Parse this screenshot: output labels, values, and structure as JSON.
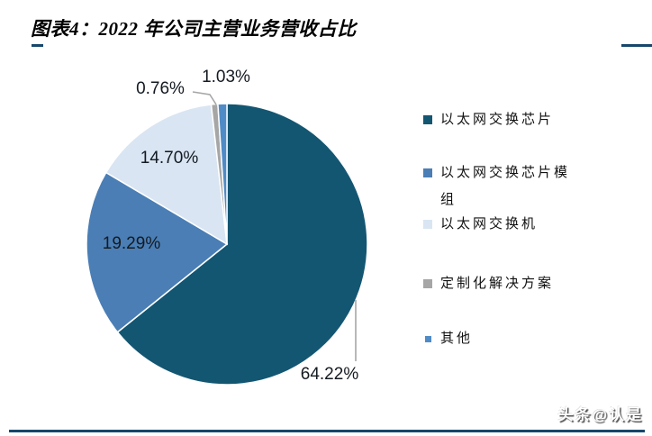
{
  "header": {
    "title": "图表4：2022 年公司主营业务营收占比"
  },
  "chart_data": {
    "type": "pie",
    "title": "2022 年公司主营业务营收占比",
    "start_angle_deg": 0,
    "direction": "clockwise",
    "legend_position": "right",
    "label_color": "#141a21",
    "leader_line_color": "#a6a6a6",
    "slices": [
      {
        "name": "以太网交换芯片",
        "value": 64.22,
        "label": "64.22%",
        "color": "#135672"
      },
      {
        "name": "以太网交换芯片模组",
        "value": 19.29,
        "label": "19.29%",
        "color": "#4a7eb5"
      },
      {
        "name": "以太网交换机",
        "value": 14.7,
        "label": "14.70%",
        "color": "#d9e5f2"
      },
      {
        "name": "定制化解决方案",
        "value": 0.76,
        "label": "0.76%",
        "color": "#a6a6a6"
      },
      {
        "name": "其他",
        "value": 1.03,
        "label": "1.03%",
        "color": "#4f8bc6"
      }
    ]
  },
  "footer": {
    "watermark": "头条@认是"
  }
}
